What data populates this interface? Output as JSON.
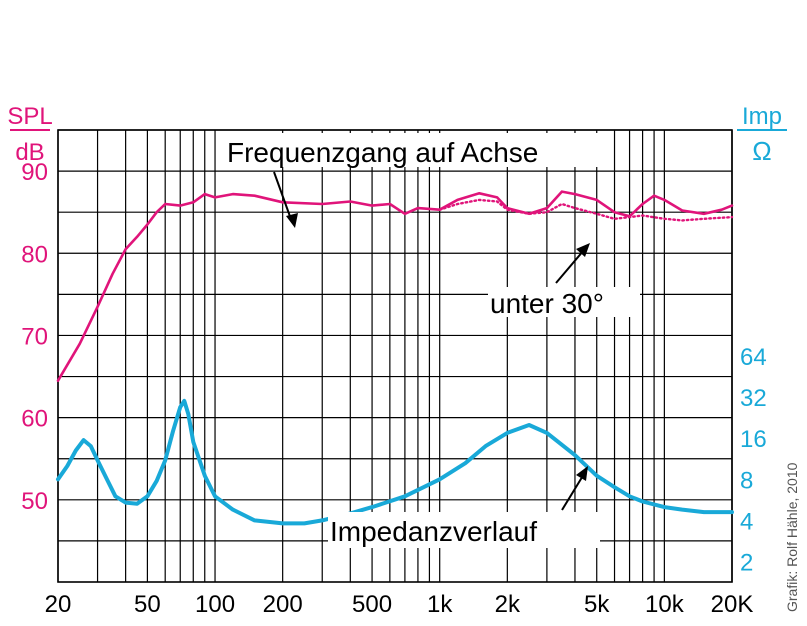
{
  "chart_data": {
    "type": "line",
    "title": "",
    "left_axis": {
      "label_top": "SPL",
      "label_bottom": "dB",
      "range": [
        40,
        95
      ],
      "tick_values": [
        50,
        60,
        70,
        80,
        90
      ],
      "tick_labels": [
        "50",
        "60",
        "70",
        "80",
        "90"
      ],
      "color": "#e0147a"
    },
    "right_axis": {
      "label_top": "Imp",
      "label_bottom": "Ω",
      "scale": "log2",
      "tick_values": [
        2,
        4,
        8,
        16,
        32,
        64
      ],
      "tick_labels": [
        "2",
        "4",
        "8",
        "16",
        "32",
        "64"
      ],
      "color": "#19a9d8"
    },
    "x_axis": {
      "scale": "log",
      "range": [
        20,
        20000
      ],
      "tick_values": [
        20,
        50,
        100,
        200,
        500,
        1000,
        2000,
        5000,
        10000,
        20000
      ],
      "tick_labels": [
        "20",
        "50",
        "100",
        "200",
        "500",
        "1k",
        "2k",
        "5k",
        "10k",
        "20K"
      ]
    },
    "grid": true,
    "series": [
      {
        "name": "Frequenzgang auf Achse",
        "axis": "left",
        "color": "#e0147a",
        "style": "solid",
        "points": [
          [
            20,
            64.5
          ],
          [
            25,
            69
          ],
          [
            30,
            73.5
          ],
          [
            35,
            77.5
          ],
          [
            40,
            80.5
          ],
          [
            45,
            82
          ],
          [
            50,
            83.5
          ],
          [
            55,
            85
          ],
          [
            60,
            86
          ],
          [
            70,
            85.8
          ],
          [
            80,
            86.2
          ],
          [
            90,
            87.2
          ],
          [
            100,
            86.8
          ],
          [
            120,
            87.2
          ],
          [
            150,
            87
          ],
          [
            200,
            86.2
          ],
          [
            300,
            86
          ],
          [
            400,
            86.3
          ],
          [
            500,
            85.8
          ],
          [
            600,
            86
          ],
          [
            700,
            84.8
          ],
          [
            800,
            85.5
          ],
          [
            1000,
            85.3
          ],
          [
            1200,
            86.5
          ],
          [
            1500,
            87.3
          ],
          [
            1800,
            86.8
          ],
          [
            2000,
            85.5
          ],
          [
            2500,
            84.8
          ],
          [
            3000,
            85.5
          ],
          [
            3500,
            87.5
          ],
          [
            4000,
            87.2
          ],
          [
            5000,
            86.5
          ],
          [
            6000,
            85
          ],
          [
            7000,
            84.5
          ],
          [
            8000,
            86
          ],
          [
            9000,
            87
          ],
          [
            10000,
            86.5
          ],
          [
            12000,
            85.2
          ],
          [
            15000,
            84.8
          ],
          [
            18000,
            85.3
          ],
          [
            20000,
            85.8
          ]
        ]
      },
      {
        "name": "unter 30°",
        "axis": "left",
        "color": "#e0147a",
        "style": "dotted",
        "points": [
          [
            1000,
            85.3
          ],
          [
            1200,
            86
          ],
          [
            1500,
            86.5
          ],
          [
            1800,
            86.3
          ],
          [
            2000,
            85.3
          ],
          [
            2500,
            84.8
          ],
          [
            3000,
            85
          ],
          [
            3500,
            86
          ],
          [
            4000,
            85.5
          ],
          [
            5000,
            84.8
          ],
          [
            6000,
            84.2
          ],
          [
            7000,
            84.4
          ],
          [
            8000,
            84.6
          ],
          [
            10000,
            84.2
          ],
          [
            12000,
            84
          ],
          [
            15000,
            84.2
          ],
          [
            20000,
            84.4
          ]
        ]
      },
      {
        "name": "Impedanzverlauf",
        "axis": "right",
        "color": "#19a9d8",
        "style": "solid",
        "points": [
          [
            20,
            8
          ],
          [
            22,
            10
          ],
          [
            24,
            13
          ],
          [
            26,
            15.5
          ],
          [
            28,
            14
          ],
          [
            30,
            11
          ],
          [
            33,
            8
          ],
          [
            36,
            6
          ],
          [
            40,
            5.4
          ],
          [
            45,
            5.3
          ],
          [
            50,
            6
          ],
          [
            55,
            7.8
          ],
          [
            60,
            11
          ],
          [
            65,
            18
          ],
          [
            70,
            27
          ],
          [
            73,
            30
          ],
          [
            76,
            24
          ],
          [
            80,
            15
          ],
          [
            90,
            8.5
          ],
          [
            100,
            6
          ],
          [
            120,
            4.8
          ],
          [
            150,
            4
          ],
          [
            200,
            3.8
          ],
          [
            250,
            3.8
          ],
          [
            300,
            4
          ],
          [
            400,
            4.5
          ],
          [
            500,
            5
          ],
          [
            700,
            6
          ],
          [
            1000,
            8
          ],
          [
            1300,
            10.5
          ],
          [
            1600,
            14
          ],
          [
            2000,
            17.5
          ],
          [
            2500,
            20
          ],
          [
            3000,
            17.5
          ],
          [
            4000,
            12
          ],
          [
            5000,
            8.5
          ],
          [
            6000,
            7
          ],
          [
            7000,
            6
          ],
          [
            8000,
            5.5
          ],
          [
            10000,
            5
          ],
          [
            12000,
            4.8
          ],
          [
            15000,
            4.6
          ],
          [
            20000,
            4.6
          ]
        ]
      }
    ],
    "annotations": [
      {
        "text": "Frequenzgang auf Achse",
        "color": "#000000"
      },
      {
        "text": "unter 30°",
        "color": "#000000"
      },
      {
        "text": "Impedanzverlauf",
        "color": "#000000"
      }
    ],
    "credit": "Grafik: Rolf Hähle, 2010"
  }
}
